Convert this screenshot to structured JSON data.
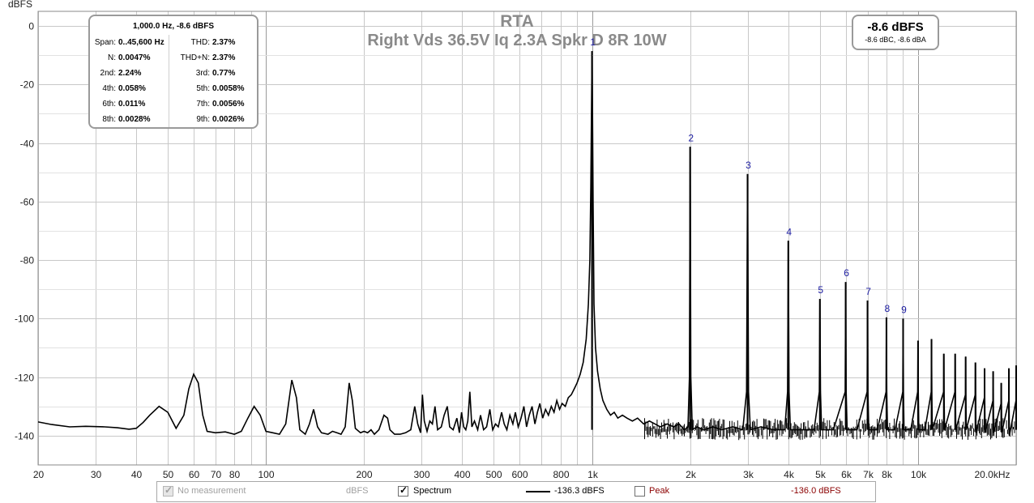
{
  "chart_data": {
    "type": "line",
    "title": "RTA",
    "subtitle": "Right Vds 36.5V Iq 2.3A Spkr D 8R 10W",
    "ylabel": "dBFS",
    "xlabel": "",
    "x_scale": "log",
    "xlim": [
      20,
      20000
    ],
    "ylim": [
      -150,
      5
    ],
    "grid": true,
    "x_ticks": [
      {
        "v": 20,
        "label": "20"
      },
      {
        "v": 30,
        "label": "30"
      },
      {
        "v": 40,
        "label": "40"
      },
      {
        "v": 50,
        "label": "50"
      },
      {
        "v": 60,
        "label": "60"
      },
      {
        "v": 70,
        "label": "70"
      },
      {
        "v": 80,
        "label": "80"
      },
      {
        "v": 100,
        "label": "100"
      },
      {
        "v": 200,
        "label": "200"
      },
      {
        "v": 300,
        "label": "300"
      },
      {
        "v": 400,
        "label": "400"
      },
      {
        "v": 500,
        "label": "500"
      },
      {
        "v": 600,
        "label": "600"
      },
      {
        "v": 800,
        "label": "800"
      },
      {
        "v": 1000,
        "label": "1k"
      },
      {
        "v": 2000,
        "label": "2k"
      },
      {
        "v": 3000,
        "label": "3k"
      },
      {
        "v": 4000,
        "label": "4k"
      },
      {
        "v": 5000,
        "label": "5k"
      },
      {
        "v": 6000,
        "label": "6k"
      },
      {
        "v": 7000,
        "label": "7k"
      },
      {
        "v": 8000,
        "label": "8k"
      },
      {
        "v": 10000,
        "label": "10k"
      },
      {
        "v": 20000,
        "label": "20.0kHz"
      }
    ],
    "x_minor_ticks": [
      90,
      700,
      900,
      9000
    ],
    "y_ticks": [
      {
        "v": 0,
        "label": "0"
      },
      {
        "v": -20,
        "label": "-20"
      },
      {
        "v": -40,
        "label": "-40"
      },
      {
        "v": -60,
        "label": "-60"
      },
      {
        "v": -80,
        "label": "-80"
      },
      {
        "v": -100,
        "label": "-100"
      },
      {
        "v": -120,
        "label": "-120"
      },
      {
        "v": -140,
        "label": "-140"
      }
    ],
    "y_minor_ticks": [
      -10,
      -30,
      -50,
      -70,
      -90,
      -110,
      -130
    ],
    "harmonics": [
      {
        "label": "1",
        "x": 1000,
        "y": -8.6
      },
      {
        "label": "2",
        "x": 2000,
        "y": -41.3
      },
      {
        "label": "3",
        "x": 3000,
        "y": -50.6
      },
      {
        "label": "4",
        "x": 4000,
        "y": -73.4
      },
      {
        "label": "5",
        "x": 5000,
        "y": -93.3
      },
      {
        "label": "6",
        "x": 6000,
        "y": -87.5
      },
      {
        "label": "7",
        "x": 7000,
        "y": -93.8
      },
      {
        "label": "8",
        "x": 8000,
        "y": -99.6
      },
      {
        "label": "9",
        "x": 9000,
        "y": -100.0
      }
    ],
    "high_spurs": [
      {
        "x": 10000,
        "y": -107.5
      },
      {
        "x": 11000,
        "y": -107
      },
      {
        "x": 12000,
        "y": -112
      },
      {
        "x": 13000,
        "y": -112
      },
      {
        "x": 14000,
        "y": -113
      },
      {
        "x": 15000,
        "y": -115
      },
      {
        "x": 16000,
        "y": -117
      },
      {
        "x": 17000,
        "y": -118
      },
      {
        "x": 18000,
        "y": -122
      },
      {
        "x": 19000,
        "y": -117
      },
      {
        "x": 20000,
        "y": -116
      }
    ],
    "series": [
      {
        "values_desc": "",
        "points": [
          [
            20,
            -135.3
          ],
          [
            22,
            -136.2
          ],
          [
            25,
            -137.0
          ],
          [
            28,
            -136.8
          ],
          [
            32,
            -137.0
          ],
          [
            35,
            -137.3
          ],
          [
            38,
            -137.8
          ],
          [
            40,
            -137.5
          ],
          [
            42,
            -135.5
          ],
          [
            44,
            -133
          ],
          [
            47,
            -130
          ],
          [
            50,
            -132
          ],
          [
            53,
            -137.5
          ],
          [
            56,
            -133
          ],
          [
            58,
            -124
          ],
          [
            60,
            -119
          ],
          [
            62,
            -122
          ],
          [
            64,
            -133
          ],
          [
            66,
            -138.5
          ],
          [
            70,
            -139
          ],
          [
            75,
            -138.7
          ],
          [
            80,
            -139.5
          ],
          [
            84,
            -138.5
          ],
          [
            88,
            -134
          ],
          [
            92,
            -130
          ],
          [
            96,
            -133
          ],
          [
            100,
            -138.5
          ],
          [
            105,
            -139
          ],
          [
            110,
            -139.5
          ],
          [
            115,
            -136
          ],
          [
            120,
            -121
          ],
          [
            124,
            -127
          ],
          [
            127,
            -138
          ],
          [
            132,
            -139.5
          ],
          [
            136,
            -136
          ],
          [
            140,
            -131
          ],
          [
            144,
            -137
          ],
          [
            148,
            -139
          ],
          [
            155,
            -139.5
          ],
          [
            160,
            -138.5
          ],
          [
            165,
            -139
          ],
          [
            170,
            -139.5
          ],
          [
            175,
            -137
          ],
          [
            180,
            -122
          ],
          [
            184,
            -128
          ],
          [
            188,
            -137.5
          ],
          [
            195,
            -139
          ],
          [
            200,
            -138.5
          ],
          [
            205,
            -139
          ],
          [
            210,
            -138
          ],
          [
            215,
            -139.5
          ],
          [
            222,
            -138
          ],
          [
            230,
            -133
          ],
          [
            236,
            -134
          ],
          [
            240,
            -138
          ],
          [
            248,
            -139.5
          ],
          [
            258,
            -139.5
          ],
          [
            268,
            -139
          ],
          [
            278,
            -138
          ],
          [
            286,
            -130
          ],
          [
            292,
            -136
          ],
          [
            298,
            -139
          ],
          [
            302,
            -126
          ],
          [
            306,
            -135
          ],
          [
            312,
            -138.5
          ],
          [
            318,
            -135
          ],
          [
            324,
            -136
          ],
          [
            330,
            -130
          ],
          [
            336,
            -138
          ],
          [
            345,
            -137
          ],
          [
            352,
            -133
          ],
          [
            360,
            -130
          ],
          [
            366,
            -137
          ],
          [
            375,
            -138
          ],
          [
            385,
            -134
          ],
          [
            392,
            -139
          ],
          [
            398,
            -132
          ],
          [
            404,
            -137
          ],
          [
            410,
            -138
          ],
          [
            416,
            -135
          ],
          [
            422,
            -125
          ],
          [
            428,
            -137
          ],
          [
            436,
            -135
          ],
          [
            446,
            -138
          ],
          [
            455,
            -133
          ],
          [
            465,
            -138
          ],
          [
            475,
            -137
          ],
          [
            486,
            -131
          ],
          [
            496,
            -138
          ],
          [
            506,
            -136
          ],
          [
            516,
            -137
          ],
          [
            528,
            -132
          ],
          [
            538,
            -136
          ],
          [
            548,
            -138
          ],
          [
            560,
            -133
          ],
          [
            572,
            -136
          ],
          [
            582,
            -132
          ],
          [
            594,
            -137
          ],
          [
            606,
            -134
          ],
          [
            618,
            -130
          ],
          [
            630,
            -137
          ],
          [
            642,
            -133
          ],
          [
            655,
            -130
          ],
          [
            668,
            -136
          ],
          [
            680,
            -132
          ],
          [
            692,
            -129
          ],
          [
            706,
            -134
          ],
          [
            720,
            -131
          ],
          [
            735,
            -133
          ],
          [
            750,
            -130
          ],
          [
            765,
            -132
          ],
          [
            780,
            -128
          ],
          [
            795,
            -131
          ],
          [
            810,
            -129
          ],
          [
            828,
            -130
          ],
          [
            846,
            -127
          ],
          [
            864,
            -126
          ],
          [
            882,
            -124
          ],
          [
            900,
            -122
          ],
          [
            920,
            -119
          ],
          [
            940,
            -115
          ],
          [
            960,
            -107
          ],
          [
            975,
            -95
          ],
          [
            985,
            -80
          ],
          [
            992,
            -55
          ],
          [
            996,
            -30
          ],
          [
            1000,
            -8.6
          ],
          [
            1004,
            -30
          ],
          [
            1008,
            -60
          ],
          [
            1014,
            -95
          ],
          [
            1025,
            -110
          ],
          [
            1040,
            -118
          ],
          [
            1060,
            -124
          ],
          [
            1080,
            -128
          ],
          [
            1110,
            -131
          ],
          [
            1140,
            -133
          ],
          [
            1170,
            -132
          ],
          [
            1200,
            -134
          ],
          [
            1240,
            -133
          ],
          [
            1280,
            -134
          ],
          [
            1330,
            -135
          ],
          [
            1380,
            -134
          ],
          [
            1440,
            -136
          ],
          [
            1500,
            -135
          ],
          [
            1560,
            -136
          ],
          [
            1620,
            -137
          ],
          [
            1700,
            -136
          ],
          [
            1780,
            -137
          ],
          [
            1850,
            -136
          ],
          [
            1920,
            -138
          ],
          [
            1970,
            -137
          ],
          [
            1990,
            -120
          ],
          [
            2000,
            -41.3
          ],
          [
            2010,
            -120
          ],
          [
            2030,
            -138
          ],
          [
            2100,
            -137
          ],
          [
            2200,
            -138
          ],
          [
            2350,
            -137
          ],
          [
            2500,
            -138
          ],
          [
            2700,
            -137
          ],
          [
            2900,
            -138
          ],
          [
            2980,
            -125
          ],
          [
            3000,
            -50.6
          ],
          [
            3020,
            -125
          ],
          [
            3060,
            -138
          ],
          [
            3300,
            -137
          ],
          [
            3600,
            -138
          ],
          [
            3900,
            -138
          ],
          [
            3980,
            -125
          ],
          [
            4000,
            -73.4
          ],
          [
            4020,
            -125
          ],
          [
            4060,
            -138
          ],
          [
            4400,
            -138
          ],
          [
            4800,
            -138
          ],
          [
            4980,
            -125
          ],
          [
            5000,
            -93.3
          ],
          [
            5020,
            -125
          ],
          [
            5060,
            -138
          ],
          [
            5500,
            -138
          ],
          [
            5980,
            -125
          ],
          [
            6000,
            -87.5
          ],
          [
            6020,
            -125
          ],
          [
            6060,
            -138
          ],
          [
            6500,
            -138
          ],
          [
            6980,
            -125
          ],
          [
            7000,
            -93.8
          ],
          [
            7020,
            -125
          ],
          [
            7060,
            -138
          ],
          [
            7500,
            -138
          ],
          [
            7980,
            -125
          ],
          [
            8000,
            -99.6
          ],
          [
            8020,
            -125
          ],
          [
            8060,
            -138
          ],
          [
            8500,
            -138
          ],
          [
            8980,
            -125
          ],
          [
            9000,
            -100
          ],
          [
            9020,
            -125
          ],
          [
            9060,
            -138
          ],
          [
            9500,
            -138
          ],
          [
            9980,
            -125
          ],
          [
            10000,
            -107.5
          ],
          [
            10020,
            -125
          ],
          [
            10060,
            -138
          ],
          [
            10500,
            -138
          ],
          [
            10980,
            -125
          ],
          [
            11000,
            -107
          ],
          [
            11020,
            -125
          ],
          [
            11060,
            -138
          ],
          [
            11980,
            -125
          ],
          [
            12000,
            -112
          ],
          [
            12020,
            -125
          ],
          [
            12060,
            -138
          ],
          [
            12980,
            -125
          ],
          [
            13000,
            -112
          ],
          [
            13020,
            -125
          ],
          [
            13060,
            -138
          ],
          [
            13980,
            -126
          ],
          [
            14000,
            -113
          ],
          [
            14020,
            -126
          ],
          [
            14060,
            -138
          ],
          [
            14980,
            -126
          ],
          [
            15000,
            -115
          ],
          [
            15020,
            -126
          ],
          [
            15060,
            -139
          ],
          [
            15980,
            -127
          ],
          [
            16000,
            -117
          ],
          [
            16020,
            -127
          ],
          [
            16060,
            -139
          ],
          [
            16980,
            -128
          ],
          [
            17000,
            -118
          ],
          [
            17020,
            -128
          ],
          [
            17060,
            -139
          ],
          [
            17980,
            -129
          ],
          [
            18000,
            -122
          ],
          [
            18020,
            -129
          ],
          [
            18060,
            -139
          ],
          [
            18980,
            -128
          ],
          [
            19000,
            -117
          ],
          [
            19020,
            -128
          ],
          [
            19060,
            -140
          ],
          [
            19980,
            -128
          ],
          [
            20000,
            -116
          ]
        ]
      }
    ]
  },
  "stats": {
    "header": "1,000.0 Hz, -8.6 dBFS",
    "rows": [
      {
        "k1": "Span:",
        "v1": "0..45,600 Hz",
        "k2": "THD:",
        "v2": "2.37%"
      },
      {
        "k1": "N:",
        "v1": "0.0047%",
        "k2": "THD+N:",
        "v2": "2.37%"
      },
      {
        "k1": "2nd:",
        "v1": "2.24%",
        "k2": "3rd:",
        "v2": "0.77%"
      },
      {
        "k1": "4th:",
        "v1": "0.058%",
        "k2": "5th:",
        "v2": "0.0058%"
      },
      {
        "k1": "6th:",
        "v1": "0.011%",
        "k2": "7th:",
        "v2": "0.0056%"
      },
      {
        "k1": "8th:",
        "v1": "0.0028%",
        "k2": "9th:",
        "v2": "0.0026%"
      }
    ]
  },
  "level": {
    "main": "-8.6 dBFS",
    "sub": "-8.6 dBC, -8.6 dBA"
  },
  "legend": {
    "no_measurement_label": "No measurement",
    "no_measurement_unit": "dBFS",
    "spectrum_label": "Spectrum",
    "spectrum_value": "-136.3 dBFS",
    "peak_label": "Peak",
    "peak_value": "-136.0 dBFS"
  },
  "colors": {
    "grid": "#c8c8c8",
    "curve": "#000000",
    "harmonic_label": "#1a1aa0",
    "title": "#8a8a8a",
    "peak": "#8b0000"
  }
}
